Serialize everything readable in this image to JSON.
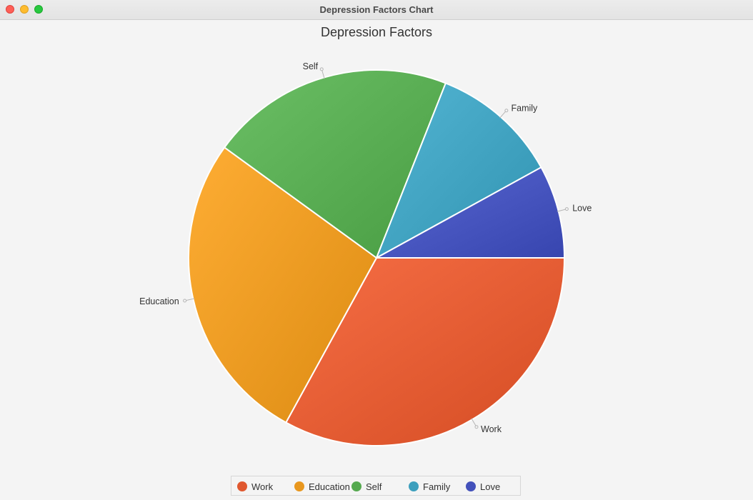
{
  "window": {
    "title": "Depression Factors Chart"
  },
  "chart_data": {
    "type": "pie",
    "title": "Depression Factors",
    "categories": [
      "Work",
      "Education",
      "Self",
      "Family",
      "Love"
    ],
    "values": [
      33,
      27,
      21,
      11,
      8
    ],
    "colors": [
      "#e0582f",
      "#e8971e",
      "#55a94f",
      "#3d9fbd",
      "#4351bb"
    ],
    "start_angle_deg": 0,
    "direction": "clockwise",
    "legend_position": "bottom"
  },
  "legend": {
    "items": [
      {
        "label": "Work",
        "color": "#e0582f"
      },
      {
        "label": "Education",
        "color": "#e8971e"
      },
      {
        "label": "Self",
        "color": "#55a94f"
      },
      {
        "label": "Family",
        "color": "#3d9fbd"
      },
      {
        "label": "Love",
        "color": "#4351bb"
      }
    ]
  }
}
